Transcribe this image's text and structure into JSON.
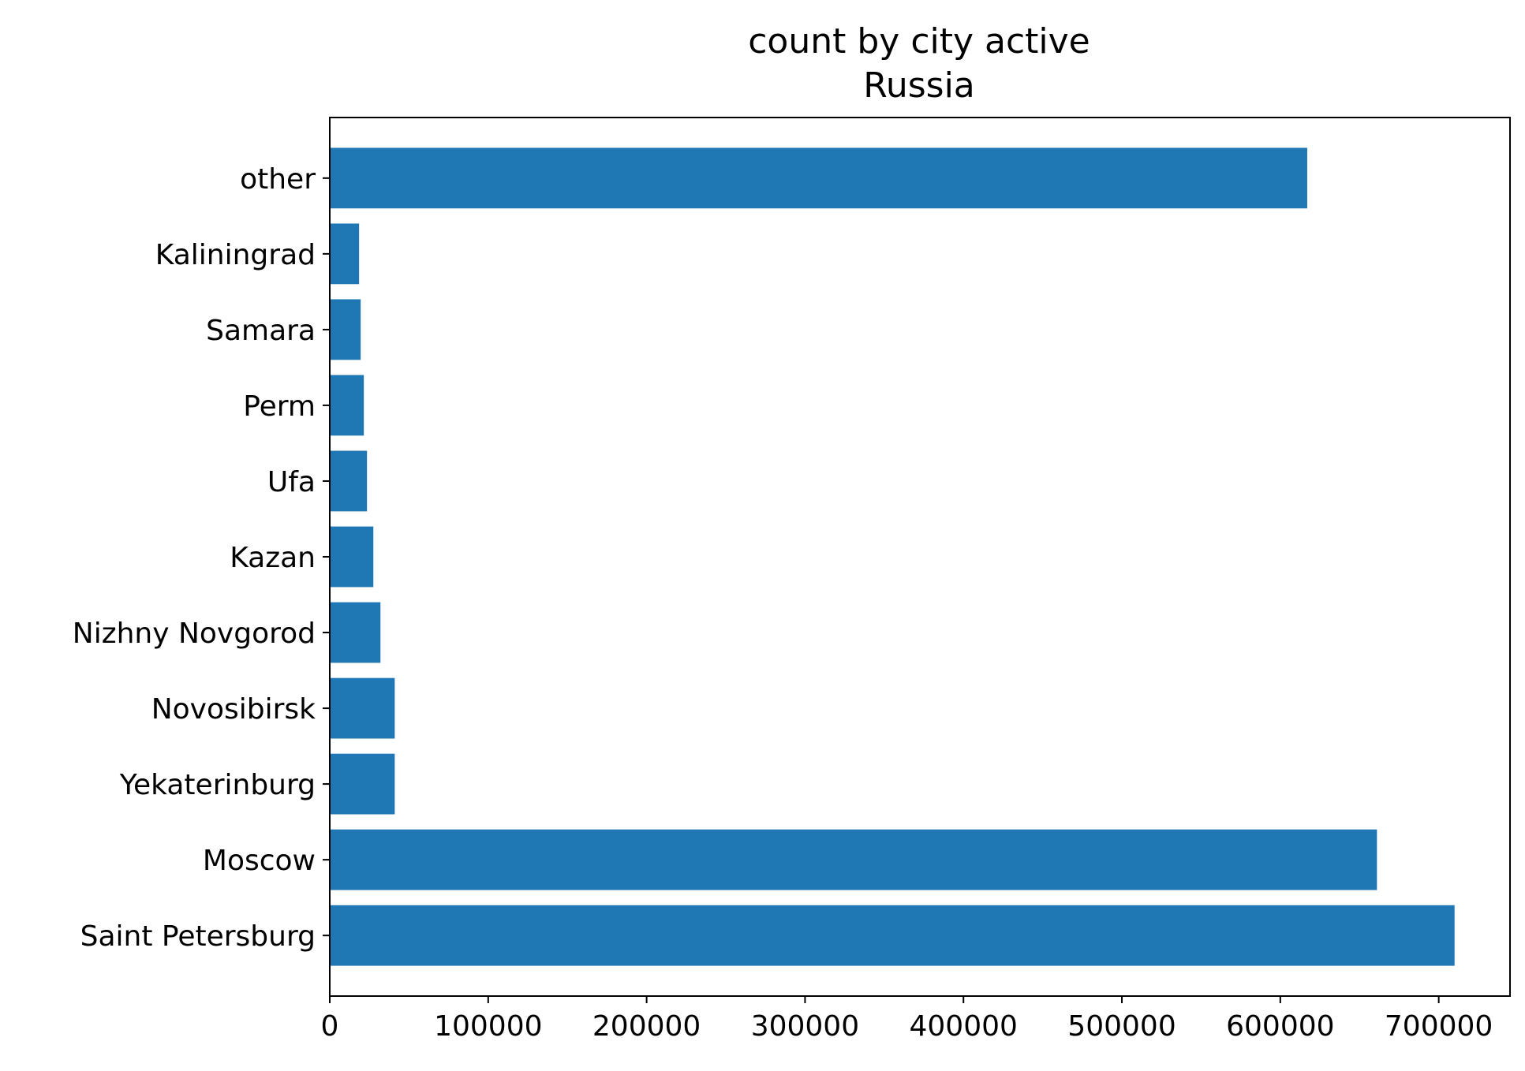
{
  "chart_data": {
    "type": "bar",
    "orientation": "horizontal",
    "title": "count by city active",
    "subtitle": "Russia",
    "xlabel": "",
    "ylabel": "",
    "categories": [
      "Saint Petersburg",
      "Moscow",
      "Yekaterinburg",
      "Novosibirsk",
      "Nizhny Novgorod",
      "Kazan",
      "Ufa",
      "Perm",
      "Samara",
      "Kaliningrad",
      "other"
    ],
    "values": [
      710000,
      661000,
      41000,
      41000,
      32000,
      27500,
      23500,
      21500,
      19500,
      18500,
      617000
    ],
    "xlim": [
      0,
      745000
    ],
    "xticks": [
      0,
      100000,
      200000,
      300000,
      400000,
      500000,
      600000,
      700000
    ],
    "xtick_labels": [
      "0",
      "100000",
      "200000",
      "300000",
      "400000",
      "500000",
      "600000",
      "700000"
    ],
    "grid": false,
    "legend": "none",
    "bar_color": "#1f77b4"
  }
}
